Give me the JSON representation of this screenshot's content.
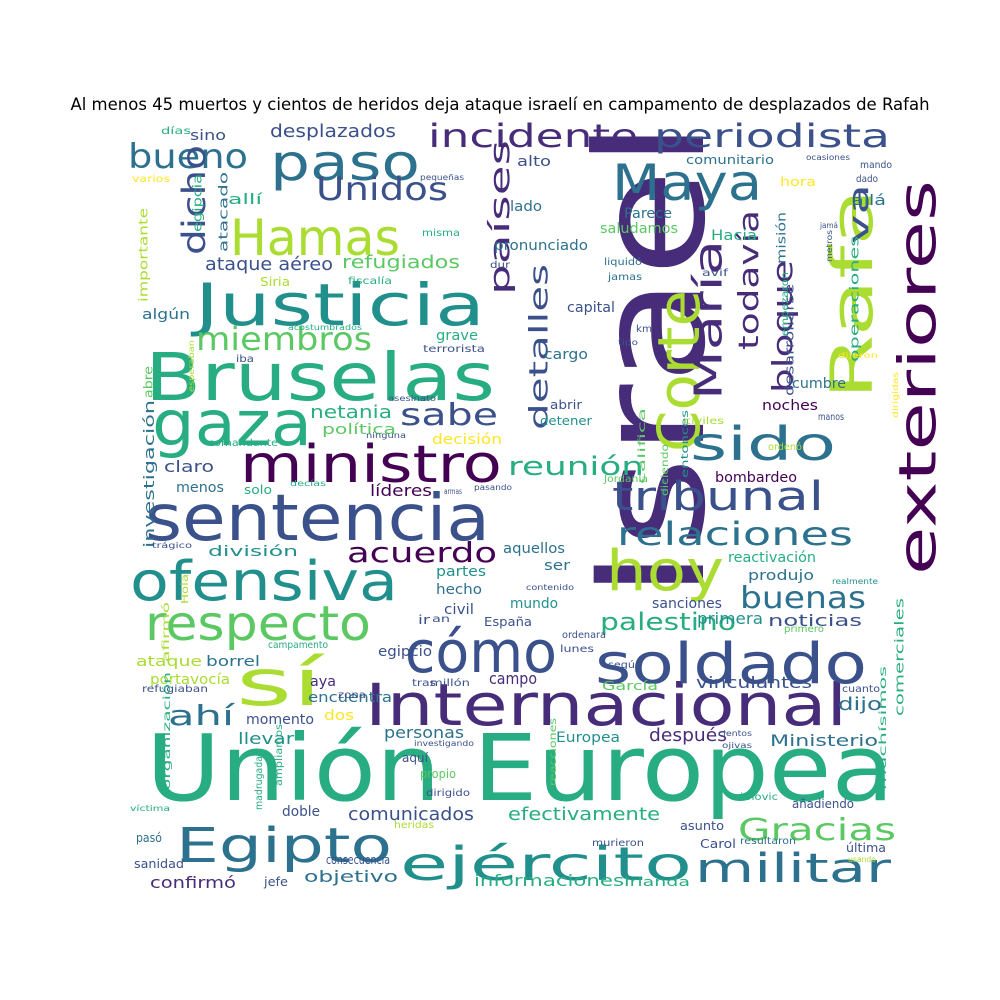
{
  "title": "Al menos 45 muertos y cientos de heridos deja ataque israelí en campamento de desplazados de Rafah",
  "palette": [
    "#440154",
    "#472c7a",
    "#3b518b",
    "#2c718e",
    "#21908d",
    "#27ad81",
    "#5cc863",
    "#aadc32",
    "#fde725"
  ],
  "words": [
    {
      "text": "Israel",
      "color": "#472c7a"
    },
    {
      "text": "Unión Europea",
      "color": "#27ad81"
    },
    {
      "text": "Bruselas",
      "color": "#27ad81"
    },
    {
      "text": "sentencia",
      "color": "#3b518b"
    },
    {
      "text": "exteriores",
      "color": "#440154"
    },
    {
      "text": "Internacional",
      "color": "#472c7a"
    },
    {
      "text": "Justicia",
      "color": "#21908d"
    },
    {
      "text": "ofensiva",
      "color": "#21908d"
    },
    {
      "text": "gaza",
      "color": "#27ad81"
    },
    {
      "text": "Rafa",
      "color": "#aadc32"
    },
    {
      "text": "Corte",
      "color": "#aadc32"
    },
    {
      "text": "soldado",
      "color": "#3b518b"
    },
    {
      "text": "ministro",
      "color": "#440154"
    },
    {
      "text": "cómo",
      "color": "#3b518b"
    },
    {
      "text": "Egipto",
      "color": "#2c718e"
    },
    {
      "text": "ejército",
      "color": "#21908d"
    },
    {
      "text": "Hamas",
      "color": "#aadc32"
    },
    {
      "text": "hoy",
      "color": "#aadc32"
    },
    {
      "text": "sí",
      "color": "#aadc32"
    },
    {
      "text": "sido",
      "color": "#2c718e"
    },
    {
      "text": "Maya",
      "color": "#2c718e"
    },
    {
      "text": "paso",
      "color": "#2c718e"
    },
    {
      "text": "respecto",
      "color": "#5cc863"
    },
    {
      "text": "María",
      "color": "#472c7a"
    },
    {
      "text": "tribunal",
      "color": "#3b518b"
    },
    {
      "text": "periodista",
      "color": "#3b518b"
    },
    {
      "text": "incidente",
      "color": "#472c7a"
    },
    {
      "text": "militar",
      "color": "#2c718e"
    },
    {
      "text": "Unidos",
      "color": "#3b518b"
    },
    {
      "text": "relaciones",
      "color": "#2c718e"
    },
    {
      "text": "bueno",
      "color": "#2c718e"
    },
    {
      "text": "dicho",
      "color": "#3b518b"
    },
    {
      "text": "miembros",
      "color": "#5cc863"
    },
    {
      "text": "detalles",
      "color": "#3b518b"
    },
    {
      "text": "países",
      "color": "#472c7a"
    },
    {
      "text": "todavía",
      "color": "#472c7a"
    },
    {
      "text": "bloque",
      "color": "#472c7a"
    },
    {
      "text": "va",
      "color": "#3b518b"
    },
    {
      "text": "buenas",
      "color": "#2c718e"
    },
    {
      "text": "Gracias",
      "color": "#5cc863"
    },
    {
      "text": "acuerdo",
      "color": "#440154"
    },
    {
      "text": "reunión",
      "color": "#27ad81"
    },
    {
      "text": "sabe",
      "color": "#3b518b"
    },
    {
      "text": "ahí",
      "color": "#2c718e"
    },
    {
      "text": "palestino",
      "color": "#27ad81"
    },
    {
      "text": "ataque aéreo",
      "color": "#3b518b"
    },
    {
      "text": "refugiados",
      "color": "#5cc863"
    },
    {
      "text": "netania",
      "color": "#27ad81"
    },
    {
      "text": "política",
      "color": "#5cc863"
    },
    {
      "text": "decisión",
      "color": "#fde725"
    },
    {
      "text": "desplazados",
      "color": "#3b518b"
    },
    {
      "text": "comunicados",
      "color": "#3b518b"
    },
    {
      "text": "efectivamente",
      "color": "#27ad81"
    },
    {
      "text": "informaciones",
      "color": "#27ad81"
    },
    {
      "text": "objetivo",
      "color": "#2c718e"
    },
    {
      "text": "confirmó",
      "color": "#472c7a"
    },
    {
      "text": "Ministerio",
      "color": "#2c718e"
    },
    {
      "text": "noticias",
      "color": "#3b518b"
    },
    {
      "text": "primera",
      "color": "#21908d"
    },
    {
      "text": "sanciones",
      "color": "#3b518b"
    },
    {
      "text": "vinculantes",
      "color": "#3b518b"
    },
    {
      "text": "dijo",
      "color": "#2c718e"
    },
    {
      "text": "después",
      "color": "#472c7a"
    },
    {
      "text": "Europea",
      "color": "#21908d"
    },
    {
      "text": "personas",
      "color": "#2c718e"
    },
    {
      "text": "momento",
      "color": "#3b518b"
    },
    {
      "text": "llevar",
      "color": "#21908d"
    },
    {
      "text": "dos",
      "color": "#fde725"
    },
    {
      "text": "encuentra",
      "color": "#2c718e"
    },
    {
      "text": "aya",
      "color": "#472c7a"
    },
    {
      "text": "borrel",
      "color": "#2c718e"
    },
    {
      "text": "ataque",
      "color": "#aadc32"
    },
    {
      "text": "portavocía",
      "color": "#aadc32"
    },
    {
      "text": "líderes",
      "color": "#440154"
    },
    {
      "text": "claro",
      "color": "#3b518b"
    },
    {
      "text": "menos",
      "color": "#2c718e"
    },
    {
      "text": "solo",
      "color": "#27ad81"
    },
    {
      "text": "división",
      "color": "#21908d"
    },
    {
      "text": "aquellos",
      "color": "#2c718e"
    },
    {
      "text": "ser",
      "color": "#2c718e"
    },
    {
      "text": "partes",
      "color": "#21908d"
    },
    {
      "text": "hecho",
      "color": "#2c718e"
    },
    {
      "text": "civil",
      "color": "#3b518b"
    },
    {
      "text": "mundo",
      "color": "#21908d"
    },
    {
      "text": "campo",
      "color": "#472c7a"
    },
    {
      "text": "egipcio",
      "color": "#3b518b"
    },
    {
      "text": "España",
      "color": "#3b518b"
    },
    {
      "text": "produjo",
      "color": "#2c718e"
    },
    {
      "text": "bombardeo",
      "color": "#440154"
    },
    {
      "text": "noches",
      "color": "#440154"
    },
    {
      "text": "cumbre",
      "color": "#2c718e"
    },
    {
      "text": "reactivación",
      "color": "#27ad81"
    },
    {
      "text": "alto",
      "color": "#3b518b"
    },
    {
      "text": "lado",
      "color": "#2c718e"
    },
    {
      "text": "pronunciado",
      "color": "#2c718e"
    },
    {
      "text": "saludamos",
      "color": "#5cc863"
    },
    {
      "text": "Parece",
      "color": "#2c718e"
    },
    {
      "text": "Hacia",
      "color": "#27ad81"
    },
    {
      "text": "comunitario",
      "color": "#2c718e"
    },
    {
      "text": "hora",
      "color": "#fde725"
    },
    {
      "text": "allá",
      "color": "#2c718e"
    },
    {
      "text": "capital",
      "color": "#3b518b"
    },
    {
      "text": "grave",
      "color": "#27ad81"
    },
    {
      "text": "cargo",
      "color": "#2c718e"
    },
    {
      "text": "sino",
      "color": "#3b518b"
    },
    {
      "text": "allí",
      "color": "#27ad81"
    },
    {
      "text": "algún",
      "color": "#2c718e"
    },
    {
      "text": "atacado",
      "color": "#2c718e"
    },
    {
      "text": "egipcia",
      "color": "#27ad81"
    },
    {
      "text": "importante",
      "color": "#aadc32"
    },
    {
      "text": "investigación",
      "color": "#2c718e"
    },
    {
      "text": "abre",
      "color": "#5cc863"
    },
    {
      "text": "varios",
      "color": "#fde725"
    },
    {
      "text": "días",
      "color": "#27ad81"
    },
    {
      "text": "Siria",
      "color": "#aadc32"
    },
    {
      "text": "fiscalía",
      "color": "#27ad81"
    },
    {
      "text": "misma",
      "color": "#27ad81"
    },
    {
      "text": "terrorista",
      "color": "#3b518b"
    },
    {
      "text": "iba",
      "color": "#3b518b"
    },
    {
      "text": "comandante",
      "color": "#27ad81"
    },
    {
      "text": "abrir",
      "color": "#3b518b"
    },
    {
      "text": "detener",
      "color": "#21908d"
    },
    {
      "text": "califica",
      "color": "#5cc863"
    },
    {
      "text": "entonces",
      "color": "#21908d"
    },
    {
      "text": "diciendo",
      "color": "#5cc863"
    },
    {
      "text": "Jordania",
      "color": "#5cc863"
    },
    {
      "text": "ordenó",
      "color": "#aadc32"
    },
    {
      "text": "civiles",
      "color": "#aadc32"
    },
    {
      "text": "manos",
      "color": "#3b518b"
    },
    {
      "text": "operaciones",
      "color": "#27ad81"
    },
    {
      "text": "desarrollarse",
      "color": "#3b518b"
    },
    {
      "text": "misión",
      "color": "#2c718e"
    },
    {
      "text": "empezaron",
      "color": "#27ad81"
    },
    {
      "text": "avif",
      "color": "#3b518b"
    },
    {
      "text": "liquidó",
      "color": "#2c718e"
    },
    {
      "text": "jamas",
      "color": "#2c718e"
    },
    {
      "text": "dur",
      "color": "#3b518b"
    },
    {
      "text": "km",
      "color": "#3b518b"
    },
    {
      "text": "tipo",
      "color": "#3b518b"
    },
    {
      "text": "mando",
      "color": "#3b518b"
    },
    {
      "text": "dado",
      "color": "#3b518b"
    },
    {
      "text": "ocasiones",
      "color": "#3b518b"
    },
    {
      "text": "pequeñas",
      "color": "#3b518b"
    },
    {
      "text": "jamá",
      "color": "#3b518b"
    },
    {
      "text": "metros",
      "color": "#3b518b"
    },
    {
      "text": "dijeron",
      "color": "#fde725"
    },
    {
      "text": "dirigidas",
      "color": "#fde725"
    },
    {
      "text": "acostumbrados",
      "color": "#27ad81"
    },
    {
      "text": "esperaban",
      "color": "#aadc32"
    },
    {
      "text": "asesinato",
      "color": "#3b518b"
    },
    {
      "text": "ninguna",
      "color": "#3b518b"
    },
    {
      "text": "decías",
      "color": "#27ad81"
    },
    {
      "text": "armas",
      "color": "#3b518b"
    },
    {
      "text": "pasando",
      "color": "#3b518b"
    },
    {
      "text": "contenido",
      "color": "#3b518b"
    },
    {
      "text": "realmente",
      "color": "#21908d"
    },
    {
      "text": "trágico",
      "color": "#3b518b"
    },
    {
      "text": "Hola",
      "color": "#aadc32"
    },
    {
      "text": "ir",
      "color": "#3b518b"
    },
    {
      "text": "an",
      "color": "#3b518b"
    },
    {
      "text": "ordenara",
      "color": "#3b518b"
    },
    {
      "text": "lunes",
      "color": "#3b518b"
    },
    {
      "text": "según",
      "color": "#3b518b"
    },
    {
      "text": "tras",
      "color": "#3b518b"
    },
    {
      "text": "millón",
      "color": "#3b518b"
    },
    {
      "text": "García",
      "color": "#5cc863"
    },
    {
      "text": "cuanto",
      "color": "#3b518b"
    },
    {
      "text": "primero",
      "color": "#5cc863"
    },
    {
      "text": "comerciales",
      "color": "#27ad81"
    },
    {
      "text": "afirmó",
      "color": "#aadc32"
    },
    {
      "text": "campamento",
      "color": "#27ad81"
    },
    {
      "text": "refugiaban",
      "color": "#3b518b"
    },
    {
      "text": "zona",
      "color": "#3b518b"
    },
    {
      "text": "organización",
      "color": "#27ad81"
    },
    {
      "text": "ampliamos",
      "color": "#27ad81"
    },
    {
      "text": "madrugada",
      "color": "#27ad81"
    },
    {
      "text": "investigando",
      "color": "#3b518b"
    },
    {
      "text": "aquí",
      "color": "#3b518b"
    },
    {
      "text": "propio",
      "color": "#5cc863"
    },
    {
      "text": "dirigido",
      "color": "#3b518b"
    },
    {
      "text": "reacciones",
      "color": "#5cc863"
    },
    {
      "text": "cientos",
      "color": "#3b518b"
    },
    {
      "text": "ojivas",
      "color": "#3b518b"
    },
    {
      "text": "muchísimos",
      "color": "#27ad81"
    },
    {
      "text": "víctima",
      "color": "#27ad81"
    },
    {
      "text": "doble",
      "color": "#3b518b"
    },
    {
      "text": "heridas",
      "color": "#aadc32"
    },
    {
      "text": "añadiendo",
      "color": "#3b518b"
    },
    {
      "text": "simovic",
      "color": "#27ad81"
    },
    {
      "text": "asunto",
      "color": "#3b518b"
    },
    {
      "text": "murieron",
      "color": "#3b518b"
    },
    {
      "text": "pasó",
      "color": "#2c718e"
    },
    {
      "text": "Carol",
      "color": "#3b518b"
    },
    {
      "text": "resultaron",
      "color": "#2c718e"
    },
    {
      "text": "última",
      "color": "#3b518b"
    },
    {
      "text": "usando",
      "color": "#aadc32"
    },
    {
      "text": "sanidad",
      "color": "#3b518b"
    },
    {
      "text": "consecuencia",
      "color": "#3b518b"
    },
    {
      "text": "jefe",
      "color": "#3b518b"
    },
    {
      "text": "Irlanda",
      "color": "#27ad81"
    }
  ]
}
